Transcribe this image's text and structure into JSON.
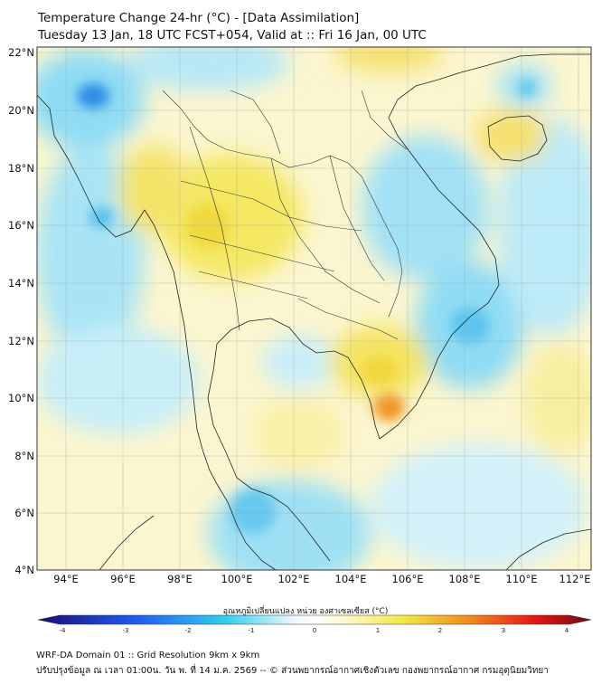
{
  "title_line1": "Temperature Change 24-hr (°C) - [Data Assimilation]",
  "title_line2": "Tuesday 13 Jan, 18 UTC FCST+054, Valid at :: Fri 16 Jan, 00 UTC",
  "map": {
    "lat_ticks": [
      "22°N",
      "20°N",
      "18°N",
      "16°N",
      "14°N",
      "12°N",
      "10°N",
      "8°N",
      "6°N",
      "4°N"
    ],
    "lon_ticks": [
      "94°E",
      "96°E",
      "98°E",
      "100°E",
      "102°E",
      "104°E",
      "106°E",
      "108°E",
      "110°E",
      "112°E"
    ],
    "grid_lines": true
  },
  "colorbar": {
    "title": "อุณหภูมิเปลี่ยนแปลง หน่วย องศาเซลเซียส (°C)",
    "ticks": [
      "-4",
      "-3",
      "-2",
      "-1",
      "0",
      "1",
      "2",
      "3",
      "4"
    ],
    "colors": {
      "cold_extreme": "#1a0b7a",
      "blue": "#1e5ff0",
      "cyan": "#33cfef",
      "neutral": "#ffffff",
      "yellow": "#f3e84a",
      "orange": "#f28a1c",
      "red": "#e31515",
      "hot_extreme": "#6e0a12"
    }
  },
  "footer_line1": "WRF-DA Domain 01 :: Grid Resolution 9km x 9km",
  "footer_line2": "ปรับปรุงข้อมูล ณ เวลา 01:00น. วัน พ. ที่ 14 ม.ค. 2569 -- © ส่วนพยากรณ์อากาศเชิงตัวเลข กองพยากรณ์อากาศ กรมอุตุนิยมวิทยา"
}
